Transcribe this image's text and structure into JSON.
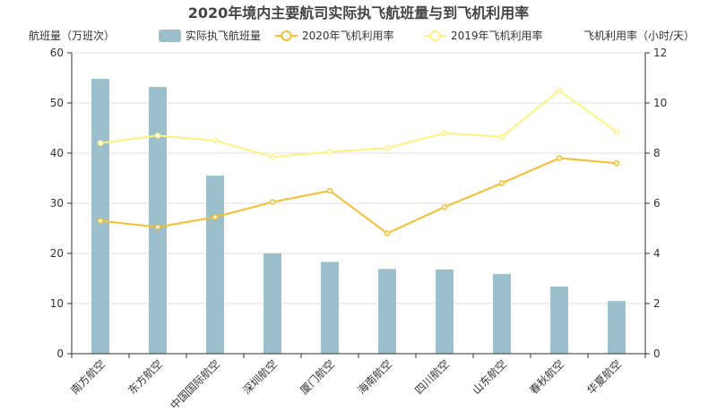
{
  "chart_data": {
    "type": "bar",
    "title": "2020年境内主要航司实际执飞航班量与到飞机利用率",
    "ylabel_left": "航班量（万班次）",
    "ylabel_right": "飞机利用率（小时/天）",
    "categories": [
      "南方航空",
      "东方航空",
      "中国国际航空",
      "深圳航空",
      "厦门航空",
      "海南航空",
      "四川航空",
      "山东航空",
      "春秋航空",
      "华夏航空"
    ],
    "ylim_left": [
      0,
      60
    ],
    "yticks_left": [
      0,
      10,
      20,
      30,
      40,
      50,
      60
    ],
    "ylim_right": [
      0,
      12
    ],
    "yticks_right": [
      0,
      2,
      4,
      6,
      8,
      10,
      12
    ],
    "legend_position": "top-center",
    "grid": true,
    "series": [
      {
        "name": "实际执飞航班量",
        "type": "bar",
        "axis": "left",
        "color": "#9bbfcb",
        "values": [
          54.8,
          53.2,
          35.5,
          20.0,
          18.3,
          16.9,
          16.8,
          15.9,
          13.4,
          10.5
        ]
      },
      {
        "name": "2020年飞机利用率",
        "type": "line",
        "axis": "right",
        "color": "#f5bf2f",
        "values": [
          5.3,
          5.05,
          5.45,
          6.05,
          6.5,
          4.8,
          5.85,
          6.8,
          7.8,
          7.6
        ]
      },
      {
        "name": "2019年飞机利用率",
        "type": "line",
        "axis": "right",
        "color": "#fff27e",
        "values": [
          8.4,
          8.7,
          8.5,
          7.85,
          8.05,
          8.2,
          8.8,
          8.65,
          10.5,
          8.85
        ]
      }
    ]
  }
}
